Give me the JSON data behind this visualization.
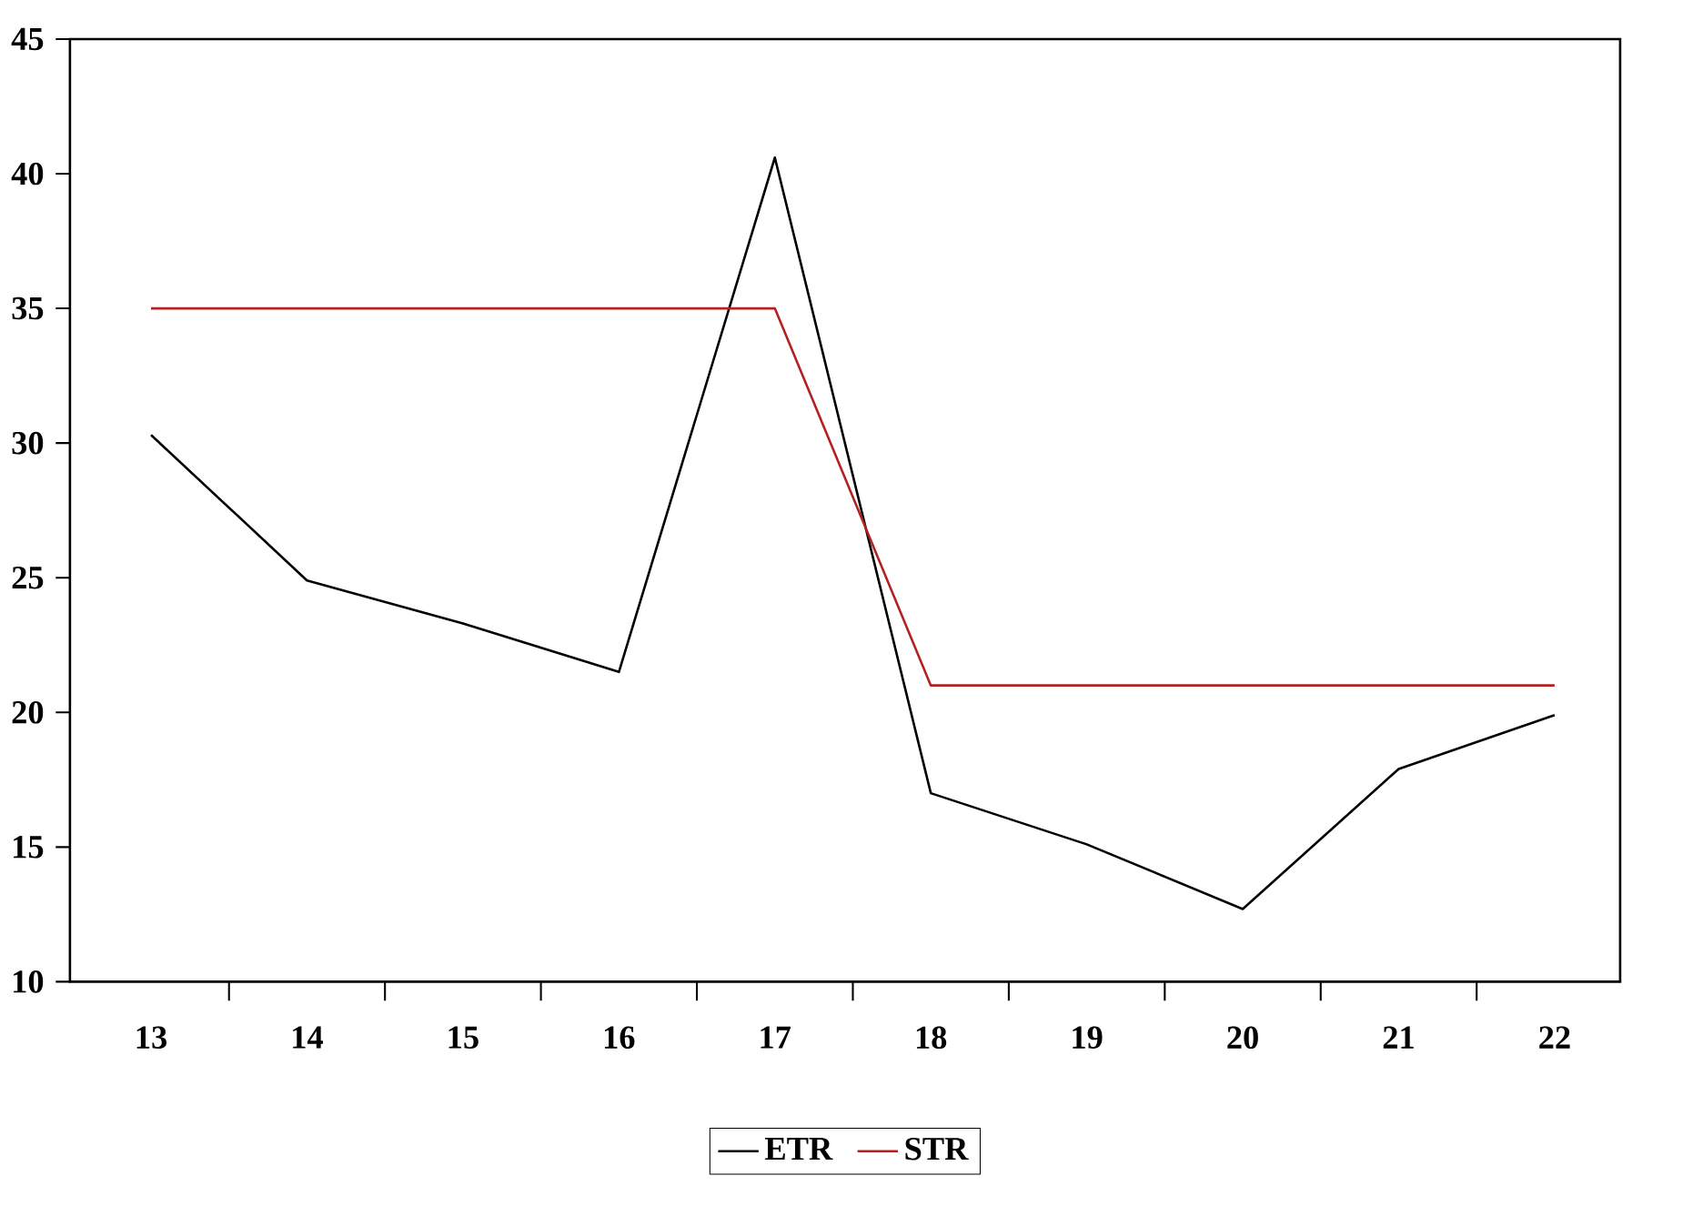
{
  "chart_data": {
    "type": "line",
    "categories": [
      "13",
      "14",
      "15",
      "16",
      "17",
      "18",
      "19",
      "20",
      "21",
      "22"
    ],
    "series": [
      {
        "name": "ETR",
        "color": "#000000",
        "values": [
          30.3,
          24.9,
          23.3,
          21.5,
          40.6,
          17.0,
          15.1,
          12.7,
          17.9,
          19.9
        ]
      },
      {
        "name": "STR",
        "color": "#b22222",
        "values": [
          35,
          35,
          35,
          35,
          35,
          21,
          21,
          21,
          21,
          21
        ]
      }
    ],
    "ylim": [
      10,
      45
    ],
    "yticks": [
      10,
      15,
      20,
      25,
      30,
      35,
      40,
      45
    ],
    "grid": false,
    "legend": "bottom",
    "marker": "none",
    "line_style": "solid"
  }
}
